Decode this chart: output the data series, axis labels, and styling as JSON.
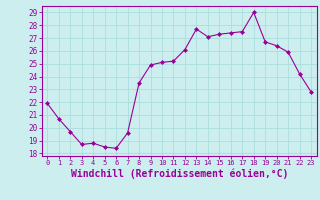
{
  "x": [
    0,
    1,
    2,
    3,
    4,
    5,
    6,
    7,
    8,
    9,
    10,
    11,
    12,
    13,
    14,
    15,
    16,
    17,
    18,
    19,
    20,
    21,
    22,
    23
  ],
  "y": [
    21.9,
    20.7,
    19.7,
    18.7,
    18.8,
    18.5,
    18.4,
    19.6,
    23.5,
    24.9,
    25.1,
    25.2,
    26.1,
    27.7,
    27.1,
    27.3,
    27.4,
    27.5,
    29.0,
    26.7,
    26.4,
    25.9,
    24.2,
    22.8
  ],
  "line_color": "#990099",
  "marker": "D",
  "marker_size": 2,
  "bg_color": "#cceeee",
  "grid_color": "#aadddd",
  "xlabel": "Windchill (Refroidissement éolien,°C)",
  "xlabel_fontsize": 7,
  "ylabel_ticks": [
    18,
    19,
    20,
    21,
    22,
    23,
    24,
    25,
    26,
    27,
    28,
    29
  ],
  "xlim": [
    -0.5,
    23.5
  ],
  "ylim": [
    17.8,
    29.5
  ],
  "xtick_fontsize": 5,
  "ytick_fontsize": 5.5
}
